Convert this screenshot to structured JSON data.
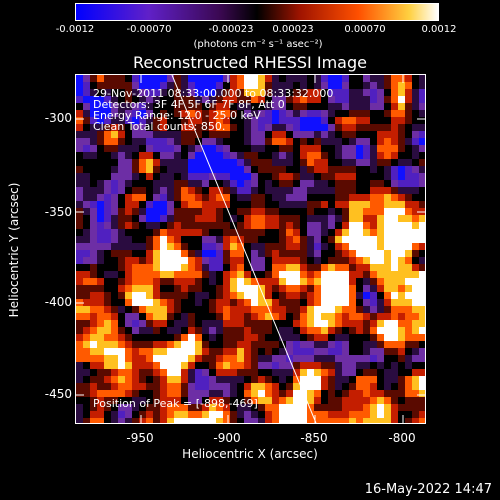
{
  "colorbar": {
    "ticks": [
      "-0.0012",
      "-0.00070",
      "-0.00023",
      "0.00023",
      "0.00070",
      "0.0012"
    ],
    "unit_label": "(photons cm⁻² s⁻¹ asec⁻²)"
  },
  "title": "Reconstructed RHESSI Image",
  "info": {
    "line1": "29-Nov-2011 08:33:00.000 to 08:33:32.000",
    "line2": "Detectors: 3F 4F 5F 6F 7F 8F, Att 0",
    "line3": "Energy Range: 12.0 - 25.0 keV",
    "line4": "Clean     Total counts: 850."
  },
  "peak_label": "Position of Peak = [-898,-469]",
  "axes": {
    "xlabel": "Heliocentric X (arcsec)",
    "ylabel": "Heliocentric Y (arcsec)",
    "xticks": [
      "-950",
      "-900",
      "-850",
      "-800"
    ],
    "yticks": [
      "-300",
      "-350",
      "-400",
      "-450"
    ]
  },
  "chart_data": {
    "type": "heatmap",
    "title": "Reconstructed RHESSI Image",
    "xlabel": "Heliocentric X (arcsec)",
    "ylabel": "Heliocentric Y (arcsec)",
    "xlim": [
      -982,
      -793
    ],
    "ylim": [
      -471,
      -283
    ],
    "colormap_range": [
      -0.0012,
      0.0012
    ],
    "colormap": [
      "#1010ff",
      "#5020c0",
      "#6d2ea5",
      "#2a0c40",
      "#000000",
      "#5a0a00",
      "#c41e00",
      "#ff5a00",
      "#ffc020",
      "#ffffff"
    ]
  },
  "timestamp": "16-May-2022 14:47"
}
